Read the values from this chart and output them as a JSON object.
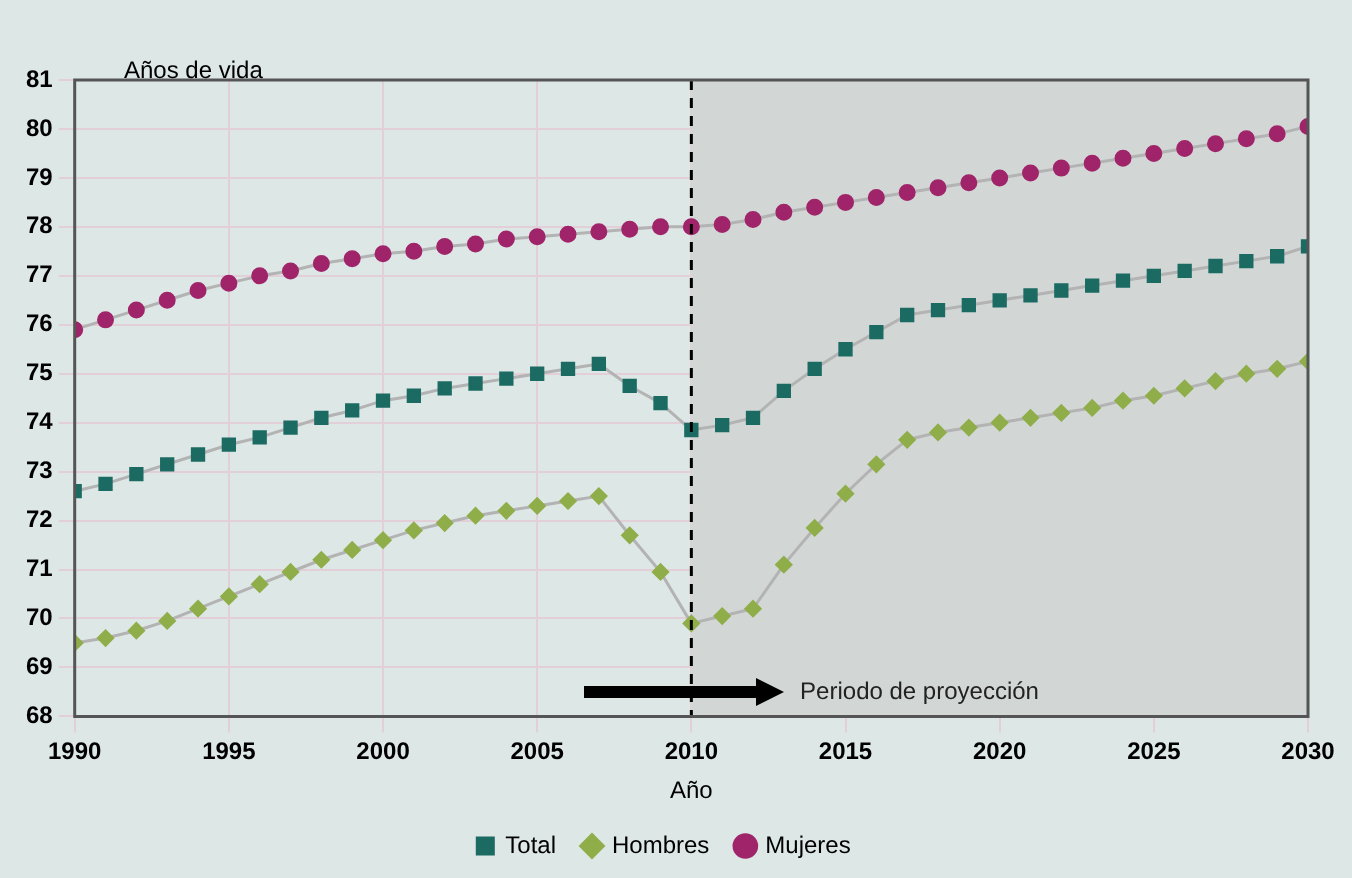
{
  "chart_data": {
    "type": "line",
    "xlabel": "Año",
    "ylabel": "Años de vida",
    "x": [
      1990,
      1991,
      1992,
      1993,
      1994,
      1995,
      1996,
      1997,
      1998,
      1999,
      2000,
      2001,
      2002,
      2003,
      2004,
      2005,
      2006,
      2007,
      2008,
      2009,
      2010,
      2011,
      2012,
      2013,
      2014,
      2015,
      2016,
      2017,
      2018,
      2019,
      2020,
      2021,
      2022,
      2023,
      2024,
      2025,
      2026,
      2027,
      2028,
      2029,
      2030
    ],
    "series": [
      {
        "name": "Total",
        "color": "#1b6b63",
        "marker": "square",
        "values": [
          72.6,
          72.75,
          72.95,
          73.15,
          73.35,
          73.55,
          73.7,
          73.9,
          74.1,
          74.25,
          74.45,
          74.55,
          74.7,
          74.8,
          74.9,
          75.0,
          75.1,
          75.2,
          74.75,
          74.4,
          73.85,
          73.95,
          74.1,
          74.65,
          75.1,
          75.5,
          75.85,
          76.2,
          76.3,
          76.4,
          76.5,
          76.6,
          76.7,
          76.8,
          76.9,
          77.0,
          77.1,
          77.2,
          77.3,
          77.4,
          77.6
        ]
      },
      {
        "name": "Hombres",
        "color": "#8fae4a",
        "marker": "diamond",
        "values": [
          69.5,
          69.6,
          69.75,
          69.95,
          70.2,
          70.45,
          70.7,
          70.95,
          71.2,
          71.4,
          71.6,
          71.8,
          71.95,
          72.1,
          72.2,
          72.3,
          72.4,
          72.5,
          71.7,
          70.95,
          69.9,
          70.05,
          70.2,
          71.1,
          71.85,
          72.55,
          73.15,
          73.65,
          73.8,
          73.9,
          74.0,
          74.1,
          74.2,
          74.3,
          74.45,
          74.55,
          74.7,
          74.85,
          75.0,
          75.1,
          75.25
        ]
      },
      {
        "name": "Mujeres",
        "color": "#a0246a",
        "marker": "circle",
        "values": [
          75.9,
          76.1,
          76.3,
          76.5,
          76.7,
          76.85,
          77.0,
          77.1,
          77.25,
          77.35,
          77.45,
          77.5,
          77.6,
          77.65,
          77.75,
          77.8,
          77.85,
          77.9,
          77.95,
          78.0,
          78.0,
          78.05,
          78.15,
          78.3,
          78.4,
          78.5,
          78.6,
          78.7,
          78.8,
          78.9,
          79.0,
          79.1,
          79.2,
          79.3,
          79.4,
          79.5,
          79.6,
          79.7,
          79.8,
          79.9,
          80.05
        ]
      }
    ],
    "xlim": [
      1990,
      2030
    ],
    "xticks": [
      1990,
      1995,
      2000,
      2005,
      2010,
      2015,
      2020,
      2025,
      2030
    ],
    "ylim": [
      68,
      81
    ],
    "yticks": [
      68,
      69,
      70,
      71,
      72,
      73,
      74,
      75,
      76,
      77,
      78,
      79,
      80,
      81
    ],
    "bands": [
      {
        "axis": "x",
        "from": 2010,
        "to": 2030,
        "color": "#d2d7d6"
      }
    ],
    "ref_lines": [
      {
        "axis": "x",
        "value": 2010,
        "color": "#000000",
        "line_style": "dashed"
      }
    ],
    "annotations": [
      "Periodo de proyección"
    ],
    "grid": true,
    "legend": "bottom"
  }
}
